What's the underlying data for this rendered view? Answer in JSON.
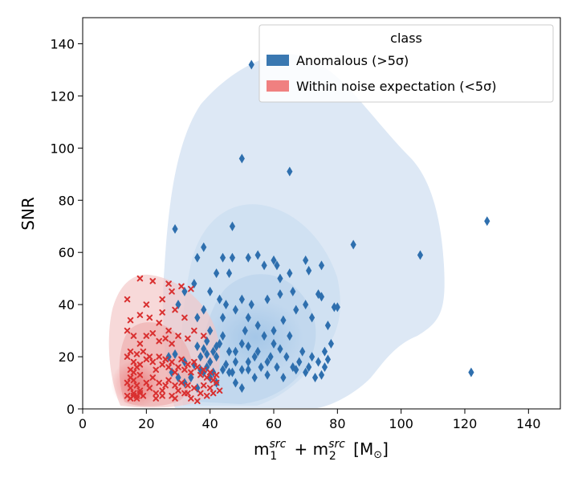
{
  "chart_data": {
    "type": "scatter",
    "xlabel_parts": {
      "m": "m",
      "sub1": "1",
      "sup1": "src",
      "plus": " + ",
      "sub2": "2",
      "sup2": "src",
      "unit": " [M",
      "sun": "⊙",
      "close": "]"
    },
    "ylabel": "SNR",
    "xlim": [
      0,
      150
    ],
    "ylim": [
      0,
      150
    ],
    "xticks": [
      "0",
      "20",
      "40",
      "60",
      "80",
      "100",
      "120",
      "140"
    ],
    "yticks": [
      "0",
      "20",
      "40",
      "60",
      "80",
      "100",
      "120",
      "140"
    ],
    "grid": false,
    "legend": {
      "title": "class",
      "placement": "top-right",
      "entries": [
        {
          "label": "Anomalous (>5σ)",
          "color": "#3a78b1"
        },
        {
          "label": "Within noise expectation (<5σ)",
          "color": "#f08080"
        }
      ]
    },
    "series": [
      {
        "name": "Anomalous (>5σ)",
        "marker": "diamond",
        "color": "#2e6fae",
        "points": [
          [
            53,
            132
          ],
          [
            50,
            96
          ],
          [
            65,
            91
          ],
          [
            127,
            72
          ],
          [
            29,
            69
          ],
          [
            47,
            70
          ],
          [
            85,
            63
          ],
          [
            106,
            59
          ],
          [
            122,
            14
          ],
          [
            38,
            62
          ],
          [
            36,
            58
          ],
          [
            44,
            58
          ],
          [
            47,
            58
          ],
          [
            52,
            58
          ],
          [
            55,
            59
          ],
          [
            60,
            57
          ],
          [
            57,
            55
          ],
          [
            61,
            55
          ],
          [
            65,
            52
          ],
          [
            70,
            57
          ],
          [
            71,
            53
          ],
          [
            75,
            55
          ],
          [
            62,
            50
          ],
          [
            42,
            52
          ],
          [
            46,
            52
          ],
          [
            32,
            45
          ],
          [
            35,
            48
          ],
          [
            40,
            45
          ],
          [
            43,
            42
          ],
          [
            30,
            40
          ],
          [
            38,
            38
          ],
          [
            45,
            40
          ],
          [
            50,
            42
          ],
          [
            53,
            40
          ],
          [
            58,
            42
          ],
          [
            62,
            44
          ],
          [
            66,
            45
          ],
          [
            70,
            40
          ],
          [
            74,
            44
          ],
          [
            75,
            43
          ],
          [
            79,
            39
          ],
          [
            80,
            39
          ],
          [
            36,
            35
          ],
          [
            40,
            30
          ],
          [
            44,
            35
          ],
          [
            48,
            38
          ],
          [
            52,
            35
          ],
          [
            55,
            32
          ],
          [
            60,
            30
          ],
          [
            63,
            34
          ],
          [
            67,
            38
          ],
          [
            72,
            35
          ],
          [
            77,
            32
          ],
          [
            36,
            24
          ],
          [
            38,
            23
          ],
          [
            39,
            26
          ],
          [
            41,
            22
          ],
          [
            42,
            20
          ],
          [
            43,
            25
          ],
          [
            45,
            17
          ],
          [
            47,
            14
          ],
          [
            48,
            22
          ],
          [
            50,
            25
          ],
          [
            51,
            30
          ],
          [
            52,
            18
          ],
          [
            54,
            20
          ],
          [
            55,
            22
          ],
          [
            57,
            28
          ],
          [
            58,
            18
          ],
          [
            60,
            25
          ],
          [
            62,
            23
          ],
          [
            64,
            20
          ],
          [
            65,
            28
          ],
          [
            66,
            16
          ],
          [
            67,
            15
          ],
          [
            68,
            18
          ],
          [
            69,
            22
          ],
          [
            70,
            14
          ],
          [
            71,
            16
          ],
          [
            72,
            20
          ],
          [
            74,
            18
          ],
          [
            76,
            22
          ],
          [
            78,
            25
          ],
          [
            76,
            16
          ],
          [
            77,
            19
          ],
          [
            27,
            20
          ],
          [
            29,
            21
          ],
          [
            32,
            18
          ],
          [
            35,
            17
          ],
          [
            37,
            15
          ],
          [
            39,
            16
          ],
          [
            40,
            12
          ],
          [
            41,
            14
          ],
          [
            42,
            10
          ],
          [
            44,
            15
          ],
          [
            46,
            14
          ],
          [
            48,
            10
          ],
          [
            50,
            8
          ],
          [
            52,
            15
          ],
          [
            54,
            12
          ],
          [
            56,
            16
          ],
          [
            58,
            13
          ],
          [
            59,
            20
          ],
          [
            61,
            16
          ],
          [
            63,
            12
          ],
          [
            73,
            12
          ],
          [
            75,
            13
          ],
          [
            28,
            14
          ],
          [
            30,
            12
          ],
          [
            32,
            10
          ],
          [
            34,
            12
          ],
          [
            36,
            8
          ],
          [
            38,
            14
          ],
          [
            40,
            18
          ],
          [
            42,
            24
          ],
          [
            44,
            28
          ],
          [
            46,
            22
          ],
          [
            48,
            18
          ],
          [
            50,
            15
          ],
          [
            52,
            24
          ],
          [
            37,
            20
          ],
          [
            39,
            21
          ]
        ]
      },
      {
        "name": "Within noise expectation (<5σ)",
        "marker": "x",
        "color": "#d93030",
        "points": [
          [
            18,
            50
          ],
          [
            22,
            49
          ],
          [
            27,
            48
          ],
          [
            34,
            46
          ],
          [
            31,
            47
          ],
          [
            14,
            42
          ],
          [
            20,
            40
          ],
          [
            25,
            42
          ],
          [
            28,
            45
          ],
          [
            15,
            34
          ],
          [
            18,
            36
          ],
          [
            21,
            35
          ],
          [
            25,
            37
          ],
          [
            29,
            38
          ],
          [
            32,
            35
          ],
          [
            24,
            33
          ],
          [
            27,
            30
          ],
          [
            14,
            30
          ],
          [
            16,
            28
          ],
          [
            18,
            25
          ],
          [
            20,
            28
          ],
          [
            22,
            29
          ],
          [
            24,
            26
          ],
          [
            26,
            27
          ],
          [
            28,
            25
          ],
          [
            30,
            28
          ],
          [
            33,
            27
          ],
          [
            35,
            30
          ],
          [
            38,
            28
          ],
          [
            14,
            20
          ],
          [
            15,
            22
          ],
          [
            16,
            18
          ],
          [
            17,
            21
          ],
          [
            18,
            17
          ],
          [
            19,
            22
          ],
          [
            20,
            19
          ],
          [
            21,
            20
          ],
          [
            22,
            18
          ],
          [
            23,
            15
          ],
          [
            24,
            20
          ],
          [
            25,
            17
          ],
          [
            26,
            19
          ],
          [
            27,
            16
          ],
          [
            28,
            18
          ],
          [
            29,
            14
          ],
          [
            30,
            16
          ],
          [
            31,
            19
          ],
          [
            32,
            15
          ],
          [
            33,
            17
          ],
          [
            34,
            14
          ],
          [
            35,
            18
          ],
          [
            36,
            16
          ],
          [
            37,
            13
          ],
          [
            38,
            15
          ],
          [
            39,
            12
          ],
          [
            40,
            14
          ],
          [
            41,
            11
          ],
          [
            42,
            13
          ],
          [
            14,
            10
          ],
          [
            15,
            8
          ],
          [
            15,
            12
          ],
          [
            16,
            6
          ],
          [
            16,
            11
          ],
          [
            17,
            9
          ],
          [
            17,
            5
          ],
          [
            18,
            7
          ],
          [
            18,
            13
          ],
          [
            19,
            5
          ],
          [
            20,
            10
          ],
          [
            21,
            8
          ],
          [
            22,
            12
          ],
          [
            23,
            6
          ],
          [
            24,
            10
          ],
          [
            25,
            7
          ],
          [
            26,
            9
          ],
          [
            27,
            11
          ],
          [
            28,
            5
          ],
          [
            29,
            9
          ],
          [
            30,
            7
          ],
          [
            31,
            10
          ],
          [
            32,
            6
          ],
          [
            33,
            9
          ],
          [
            34,
            4
          ],
          [
            35,
            8
          ],
          [
            36,
            3
          ],
          [
            37,
            6
          ],
          [
            38,
            9
          ],
          [
            39,
            5
          ],
          [
            40,
            8
          ],
          [
            41,
            6
          ],
          [
            42,
            10
          ],
          [
            43,
            7
          ],
          [
            14,
            5
          ],
          [
            15,
            4
          ],
          [
            16,
            5
          ],
          [
            17,
            4
          ],
          [
            18,
            6
          ],
          [
            23,
            4
          ],
          [
            25,
            5
          ],
          [
            29,
            4
          ],
          [
            33,
            6
          ],
          [
            15,
            15
          ],
          [
            16,
            14
          ],
          [
            17,
            16
          ]
        ]
      }
    ]
  }
}
